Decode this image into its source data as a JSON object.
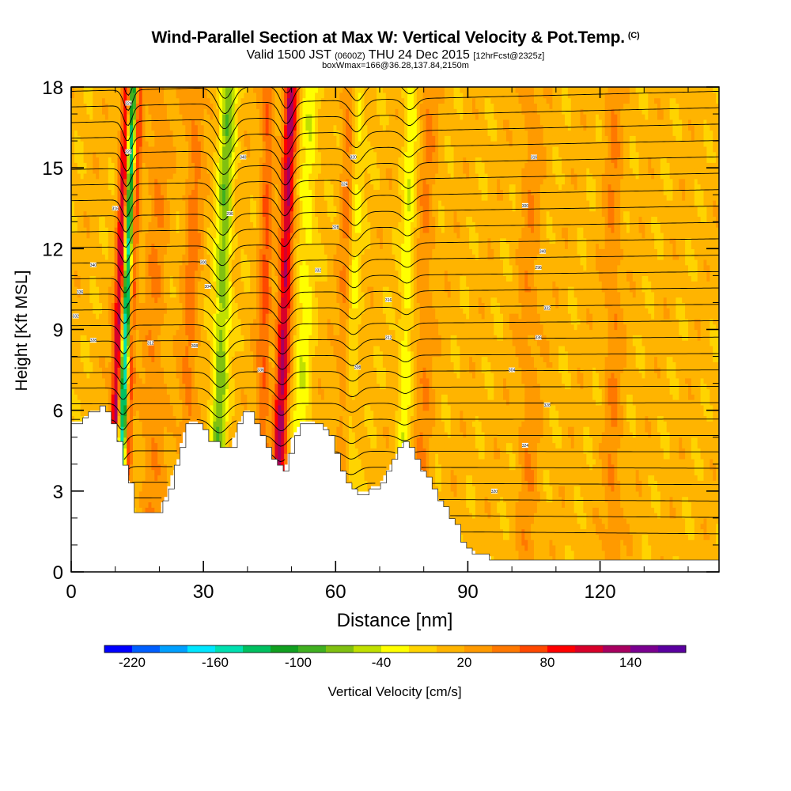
{
  "title": "Wind-Parallel Section at Max W: Vertical Velocity & Pot.Temp.",
  "copyright": "(C)",
  "subtitle": {
    "valid": "Valid 1500 JST",
    "zulu": "(0600Z)",
    "date": "THU 24 Dec 2015",
    "forecast": "[12hrFcst@2325z]"
  },
  "box_info": "boxWmax=166@36.28,137.84,2150m",
  "chart_data": {
    "type": "heatmap",
    "xlabel": "Distance [nm]",
    "ylabel": "Height [Kft MSL]",
    "xlim": [
      0,
      147
    ],
    "ylim": [
      0,
      18
    ],
    "x_ticks": [
      0,
      30,
      60,
      90,
      120
    ],
    "y_ticks": [
      0,
      3,
      6,
      9,
      12,
      15,
      18
    ],
    "x_tick_labels": [
      "0",
      "30",
      "60",
      "90",
      "120"
    ],
    "y_tick_labels": [
      "0",
      "3",
      "6",
      "9",
      "12",
      "15",
      "18"
    ],
    "colorbar": {
      "label": "Vertical Velocity [cm/s]",
      "tick_values": [
        -220,
        -160,
        -100,
        -40,
        20,
        80,
        140
      ],
      "tick_labels": [
        "-220",
        "-160",
        "-100",
        "-40",
        "20",
        "80",
        "140"
      ],
      "min": -240,
      "max": 180,
      "step": 20,
      "colors": [
        "#0000ff",
        "#005fff",
        "#00a0ff",
        "#00e6ff",
        "#00e0b0",
        "#00c060",
        "#10a020",
        "#40b020",
        "#80c010",
        "#c0e000",
        "#ffff00",
        "#ffd400",
        "#ffb400",
        "#ff9a00",
        "#ff7800",
        "#ff4800",
        "#ff0000",
        "#d8002a",
        "#a80060",
        "#7a0090",
        "#5a00a0"
      ]
    },
    "terrain_top_kft": [
      [
        0,
        5.5
      ],
      [
        2,
        5.6
      ],
      [
        5,
        6.0
      ],
      [
        7,
        6.1
      ],
      [
        9,
        5.6
      ],
      [
        10,
        5.0
      ],
      [
        11,
        4.4
      ],
      [
        12,
        3.8
      ],
      [
        13,
        3.3
      ],
      [
        14,
        2.3
      ],
      [
        17,
        2.3
      ],
      [
        20,
        2.3
      ],
      [
        22,
        3.1
      ],
      [
        24,
        4.2
      ],
      [
        26,
        5.4
      ],
      [
        28,
        5.7
      ],
      [
        31,
        4.9
      ],
      [
        33,
        4.7
      ],
      [
        35,
        4.6
      ],
      [
        36,
        4.5
      ],
      [
        38,
        5.6
      ],
      [
        40,
        6.1
      ],
      [
        42,
        5.3
      ],
      [
        45,
        4.3
      ],
      [
        48,
        3.6
      ],
      [
        50,
        4.9
      ],
      [
        52,
        5.6
      ],
      [
        55,
        5.5
      ],
      [
        58,
        5.3
      ],
      [
        60,
        4.2
      ],
      [
        63,
        3.0
      ],
      [
        66,
        2.9
      ],
      [
        70,
        3.3
      ],
      [
        73,
        4.2
      ],
      [
        75,
        4.8
      ],
      [
        77,
        4.6
      ],
      [
        80,
        3.6
      ],
      [
        83,
        2.7
      ],
      [
        87,
        1.7
      ],
      [
        89,
        0.8
      ],
      [
        92,
        0.7
      ],
      [
        95,
        0.5
      ],
      [
        100,
        0.4
      ],
      [
        147,
        0.4
      ]
    ],
    "contour_labels": [
      "340",
      "336",
      "332",
      "328",
      "324",
      "320",
      "316",
      "312",
      "308",
      "304",
      "300",
      "296"
    ]
  }
}
